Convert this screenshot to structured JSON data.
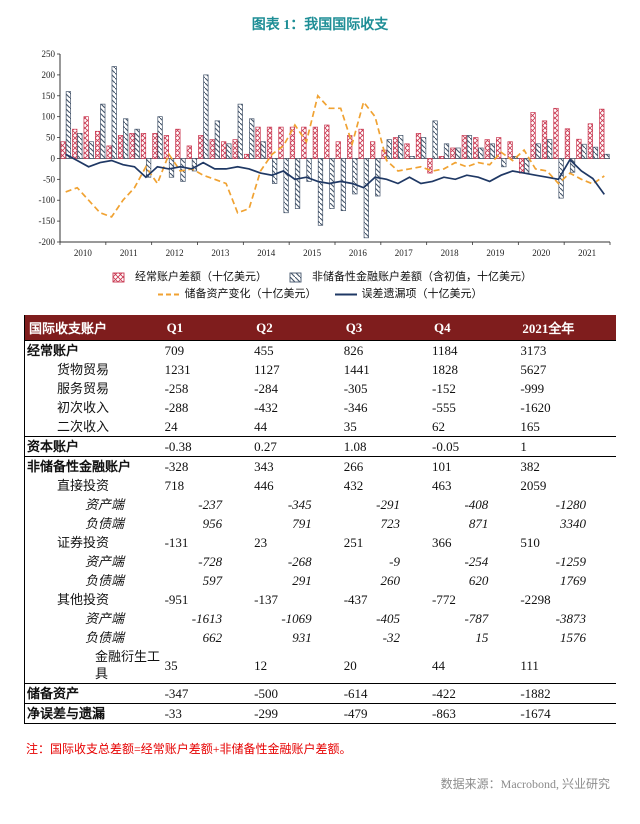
{
  "title": "图表 1：我国国际收支",
  "note": "注：国际收支总差额=经常账户差额+非储备性金融账户差额。",
  "source": "数据来源：Macrobond, 兴业研究",
  "colors": {
    "title": "#1e8e96",
    "current": "#c9364f",
    "financial": "#44546a",
    "reserve": "#f0a232",
    "eo": "#1f3864",
    "header_bg": "#7f1d1d",
    "note": "#e60000",
    "source": "#8c8c8c",
    "axis": "#333333"
  },
  "chart_data": {
    "type": "bar",
    "unit": "十亿美元",
    "ylim": [
      -200,
      250
    ],
    "ytick_step": 50,
    "grid": false,
    "legend_position": "bottom",
    "years": [
      2010,
      2011,
      2012,
      2013,
      2014,
      2015,
      2016,
      2017,
      2018,
      2019,
      2020,
      2021
    ],
    "x_note": "quarterly, 2010Q1-2021Q4",
    "series": [
      {
        "name": "经常账户差额（十亿美元）",
        "type": "bar",
        "style": "red-crosshatch",
        "values": [
          40,
          70,
          100,
          65,
          30,
          55,
          60,
          60,
          60,
          55,
          70,
          30,
          55,
          45,
          40,
          45,
          10,
          75,
          75,
          75,
          75,
          75,
          75,
          80,
          40,
          55,
          70,
          40,
          20,
          50,
          35,
          60,
          -35,
          5,
          25,
          55,
          50,
          45,
          50,
          40,
          -35,
          110,
          90,
          120,
          71,
          46,
          83,
          118
        ]
      },
      {
        "name": "非储备性金融账户差额（含初值，十亿美元）",
        "type": "bar",
        "style": "blue-hatch",
        "values": [
          160,
          60,
          40,
          130,
          220,
          95,
          70,
          -45,
          100,
          -45,
          -55,
          -30,
          200,
          90,
          35,
          130,
          95,
          40,
          -60,
          -130,
          -120,
          -55,
          -160,
          -120,
          -125,
          -85,
          -190,
          -90,
          45,
          55,
          5,
          50,
          90,
          35,
          25,
          55,
          25,
          35,
          -20,
          5,
          -35,
          35,
          45,
          -95,
          -33,
          34,
          27,
          10
        ]
      },
      {
        "name": "储备资产变化（十亿美元）",
        "type": "line",
        "style": "orange-dashed",
        "values": [
          -80,
          -70,
          -100,
          -130,
          -140,
          -100,
          -70,
          -20,
          -60,
          10,
          -30,
          -25,
          -40,
          -50,
          -60,
          -130,
          -120,
          -30,
          10,
          30,
          80,
          40,
          150,
          120,
          120,
          35,
          135,
          100,
          -5,
          -30,
          -25,
          -20,
          -30,
          -25,
          -10,
          -20,
          -10,
          -15,
          15,
          -5,
          20,
          -25,
          -30,
          -60,
          -35,
          -50,
          -61,
          -42
        ]
      },
      {
        "name": "误差遗漏项（十亿美元）",
        "type": "line",
        "style": "navy-solid",
        "values": [
          10,
          -5,
          -20,
          -10,
          -5,
          -15,
          -20,
          -45,
          -20,
          -25,
          -20,
          -25,
          -10,
          -25,
          -25,
          -20,
          -25,
          -35,
          -40,
          -30,
          -50,
          -45,
          -55,
          -60,
          -55,
          -60,
          -70,
          -45,
          -50,
          -60,
          -45,
          -60,
          -55,
          -45,
          -50,
          -40,
          -45,
          -55,
          -40,
          -30,
          -35,
          -40,
          -45,
          -50,
          -3,
          -30,
          -48,
          -86
        ]
      }
    ]
  },
  "table": {
    "headers": [
      "国际收支账户",
      "Q1",
      "Q2",
      "Q3",
      "Q4",
      "2021全年"
    ],
    "rows": [
      {
        "label": "经常账户",
        "level": 0,
        "sep": true,
        "italic": false,
        "values": [
          "709",
          "455",
          "826",
          "1184",
          "3173"
        ]
      },
      {
        "label": "货物贸易",
        "level": 1,
        "sep": false,
        "italic": false,
        "values": [
          "1231",
          "1127",
          "1441",
          "1828",
          "5627"
        ]
      },
      {
        "label": "服务贸易",
        "level": 1,
        "sep": false,
        "italic": false,
        "values": [
          "-258",
          "-284",
          "-305",
          "-152",
          "-999"
        ]
      },
      {
        "label": "初次收入",
        "level": 1,
        "sep": false,
        "italic": false,
        "values": [
          "-288",
          "-432",
          "-346",
          "-555",
          "-1620"
        ]
      },
      {
        "label": "二次收入",
        "level": 1,
        "sep": false,
        "italic": false,
        "values": [
          "24",
          "44",
          "35",
          "62",
          "165"
        ]
      },
      {
        "label": "资本账户",
        "level": 0,
        "sep": true,
        "italic": false,
        "values": [
          "-0.38",
          "0.27",
          "1.08",
          "-0.05",
          "1"
        ]
      },
      {
        "label": "非储备性金融账户",
        "level": 0,
        "sep": true,
        "italic": false,
        "values": [
          "-328",
          "343",
          "266",
          "101",
          "382"
        ]
      },
      {
        "label": "直接投资",
        "level": 1,
        "sep": false,
        "italic": false,
        "values": [
          "718",
          "446",
          "432",
          "463",
          "2059"
        ]
      },
      {
        "label": "资产端",
        "level": 2,
        "sep": false,
        "italic": true,
        "values": [
          "-237",
          "-345",
          "-291",
          "-408",
          "-1280"
        ]
      },
      {
        "label": "负债端",
        "level": 2,
        "sep": false,
        "italic": true,
        "values": [
          "956",
          "791",
          "723",
          "871",
          "3340"
        ]
      },
      {
        "label": "证券投资",
        "level": 1,
        "sep": false,
        "italic": false,
        "values": [
          "-131",
          "23",
          "251",
          "366",
          "510"
        ]
      },
      {
        "label": "资产端",
        "level": 2,
        "sep": false,
        "italic": true,
        "values": [
          "-728",
          "-268",
          "-9",
          "-254",
          "-1259"
        ]
      },
      {
        "label": "负债端",
        "level": 2,
        "sep": false,
        "italic": true,
        "values": [
          "597",
          "291",
          "260",
          "620",
          "1769"
        ]
      },
      {
        "label": "其他投资",
        "level": 1,
        "sep": false,
        "italic": false,
        "values": [
          "-951",
          "-137",
          "-437",
          "-772",
          "-2298"
        ]
      },
      {
        "label": "资产端",
        "level": 2,
        "sep": false,
        "italic": true,
        "values": [
          "-1613",
          "-1069",
          "-405",
          "-787",
          "-3873"
        ]
      },
      {
        "label": "负债端",
        "level": 2,
        "sep": false,
        "italic": true,
        "values": [
          "662",
          "931",
          "-32",
          "15",
          "1576"
        ]
      },
      {
        "label": "金融衍生工具",
        "level": 3,
        "sep": false,
        "italic": false,
        "values": [
          "35",
          "12",
          "20",
          "44",
          "111"
        ]
      },
      {
        "label": "储备资产",
        "level": 0,
        "sep": true,
        "italic": false,
        "values": [
          "-347",
          "-500",
          "-614",
          "-422",
          "-1882"
        ]
      },
      {
        "label": "净误差与遗漏",
        "level": 0,
        "sep": true,
        "italic": false,
        "values": [
          "-33",
          "-299",
          "-479",
          "-863",
          "-1674"
        ]
      }
    ]
  }
}
